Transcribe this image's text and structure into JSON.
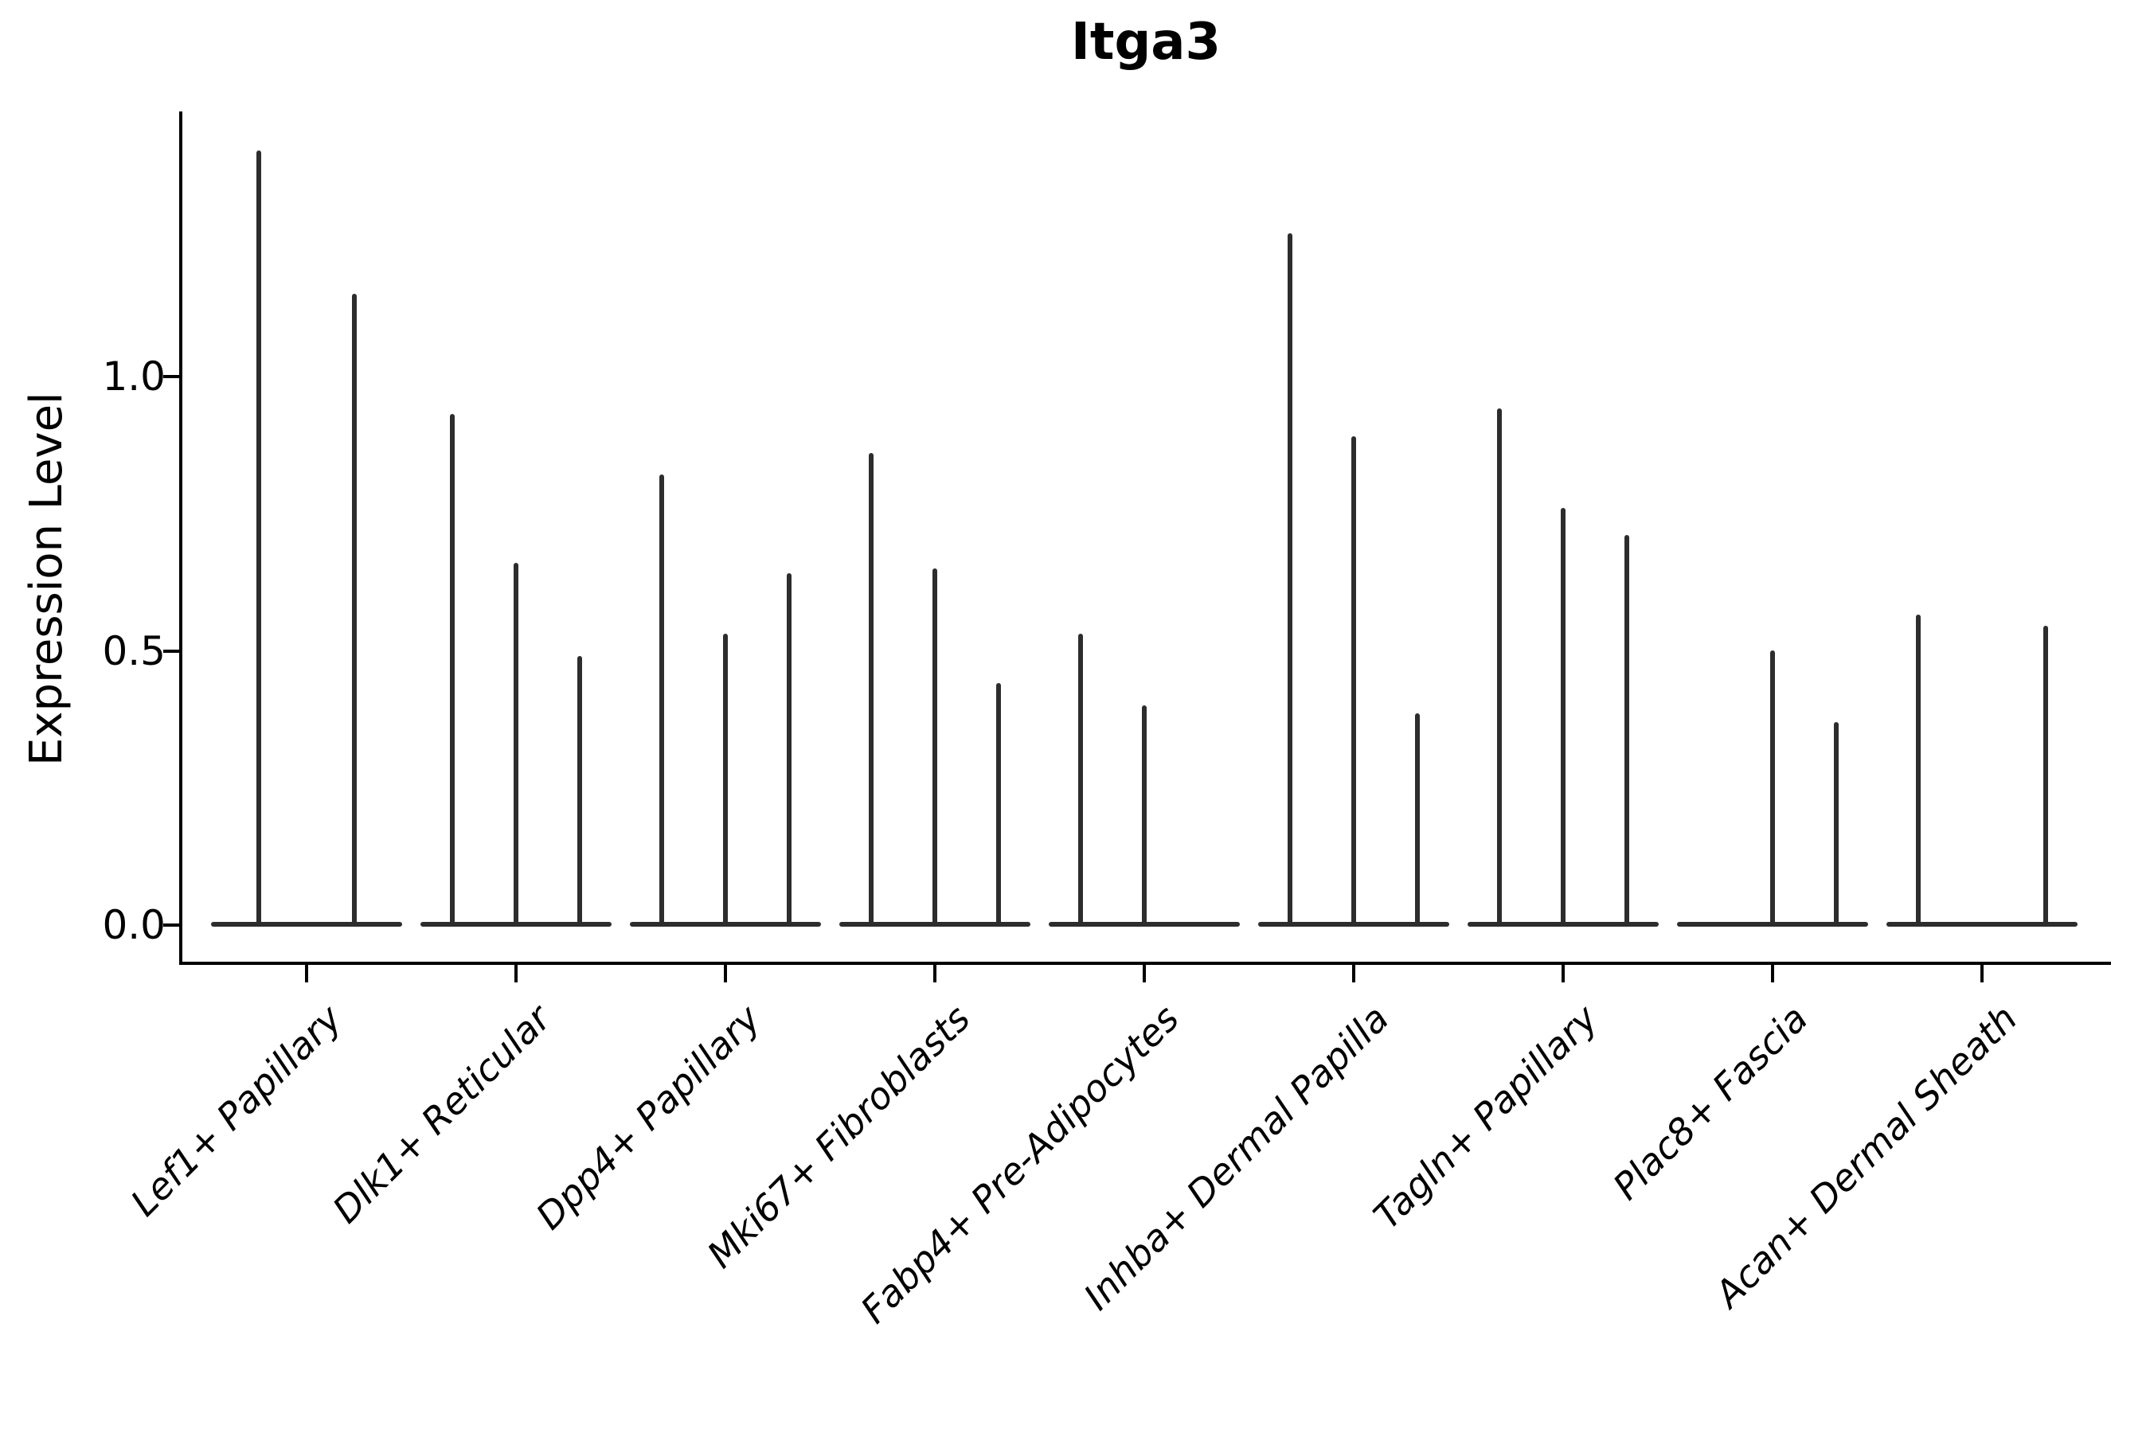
{
  "title": "Itga3",
  "axes": {
    "ylabel": "Expression Level",
    "ytick_labels": [
      "0.0",
      "0.5",
      "1.0"
    ]
  },
  "chart_data": {
    "type": "violin",
    "title": "Itga3",
    "xlabel": "",
    "ylabel": "Expression Level",
    "yticks": [
      0.0,
      0.5,
      1.0
    ],
    "ylim": [
      -0.07,
      1.48
    ],
    "grid": false,
    "legend_position": "none",
    "categories": [
      "Lef1+ Papillary",
      "Dlk1+ Reticular",
      "Dpp4+ Papillary",
      "Mki67+ Fibroblasts",
      "Fabp4+ Pre-Adipocytes",
      "Inhba+ Dermal Papilla",
      "Tagln+ Papillary",
      "Plac8+ Fascia",
      "Acan+ Dermal Sheath"
    ],
    "groups": [
      {
        "category": "Lef1+ Papillary",
        "violin_max_values": [
          1.41,
          1.15
        ]
      },
      {
        "category": "Dlk1+ Reticular",
        "violin_max_values": [
          0.93,
          0.66,
          0.49
        ]
      },
      {
        "category": "Dpp4+ Papillary",
        "violin_max_values": [
          0.82,
          0.53,
          0.64
        ]
      },
      {
        "category": "Mki67+ Fibroblasts",
        "violin_max_values": [
          0.86,
          0.65,
          0.44
        ]
      },
      {
        "category": "Fabp4+ Pre-Adipocytes",
        "violin_max_values": [
          0.53,
          0.4,
          0.0
        ]
      },
      {
        "category": "Inhba+ Dermal Papilla",
        "violin_max_values": [
          1.26,
          0.89,
          0.385
        ]
      },
      {
        "category": "Tagln+ Papillary",
        "violin_max_values": [
          0.94,
          0.76,
          0.71
        ]
      },
      {
        "category": "Plac8+ Fascia",
        "violin_max_values": [
          0.0,
          0.5,
          0.37
        ]
      },
      {
        "category": "Acan+ Dermal Sheath",
        "violin_max_values": [
          0.565,
          0.0,
          0.545
        ]
      }
    ],
    "violin_color": "#2d2d2d",
    "axis_color": "#000000",
    "description_of_shape": "each violin is a near-zero-width density: flat base at 0 with a thin vertical spike up to its max value"
  }
}
